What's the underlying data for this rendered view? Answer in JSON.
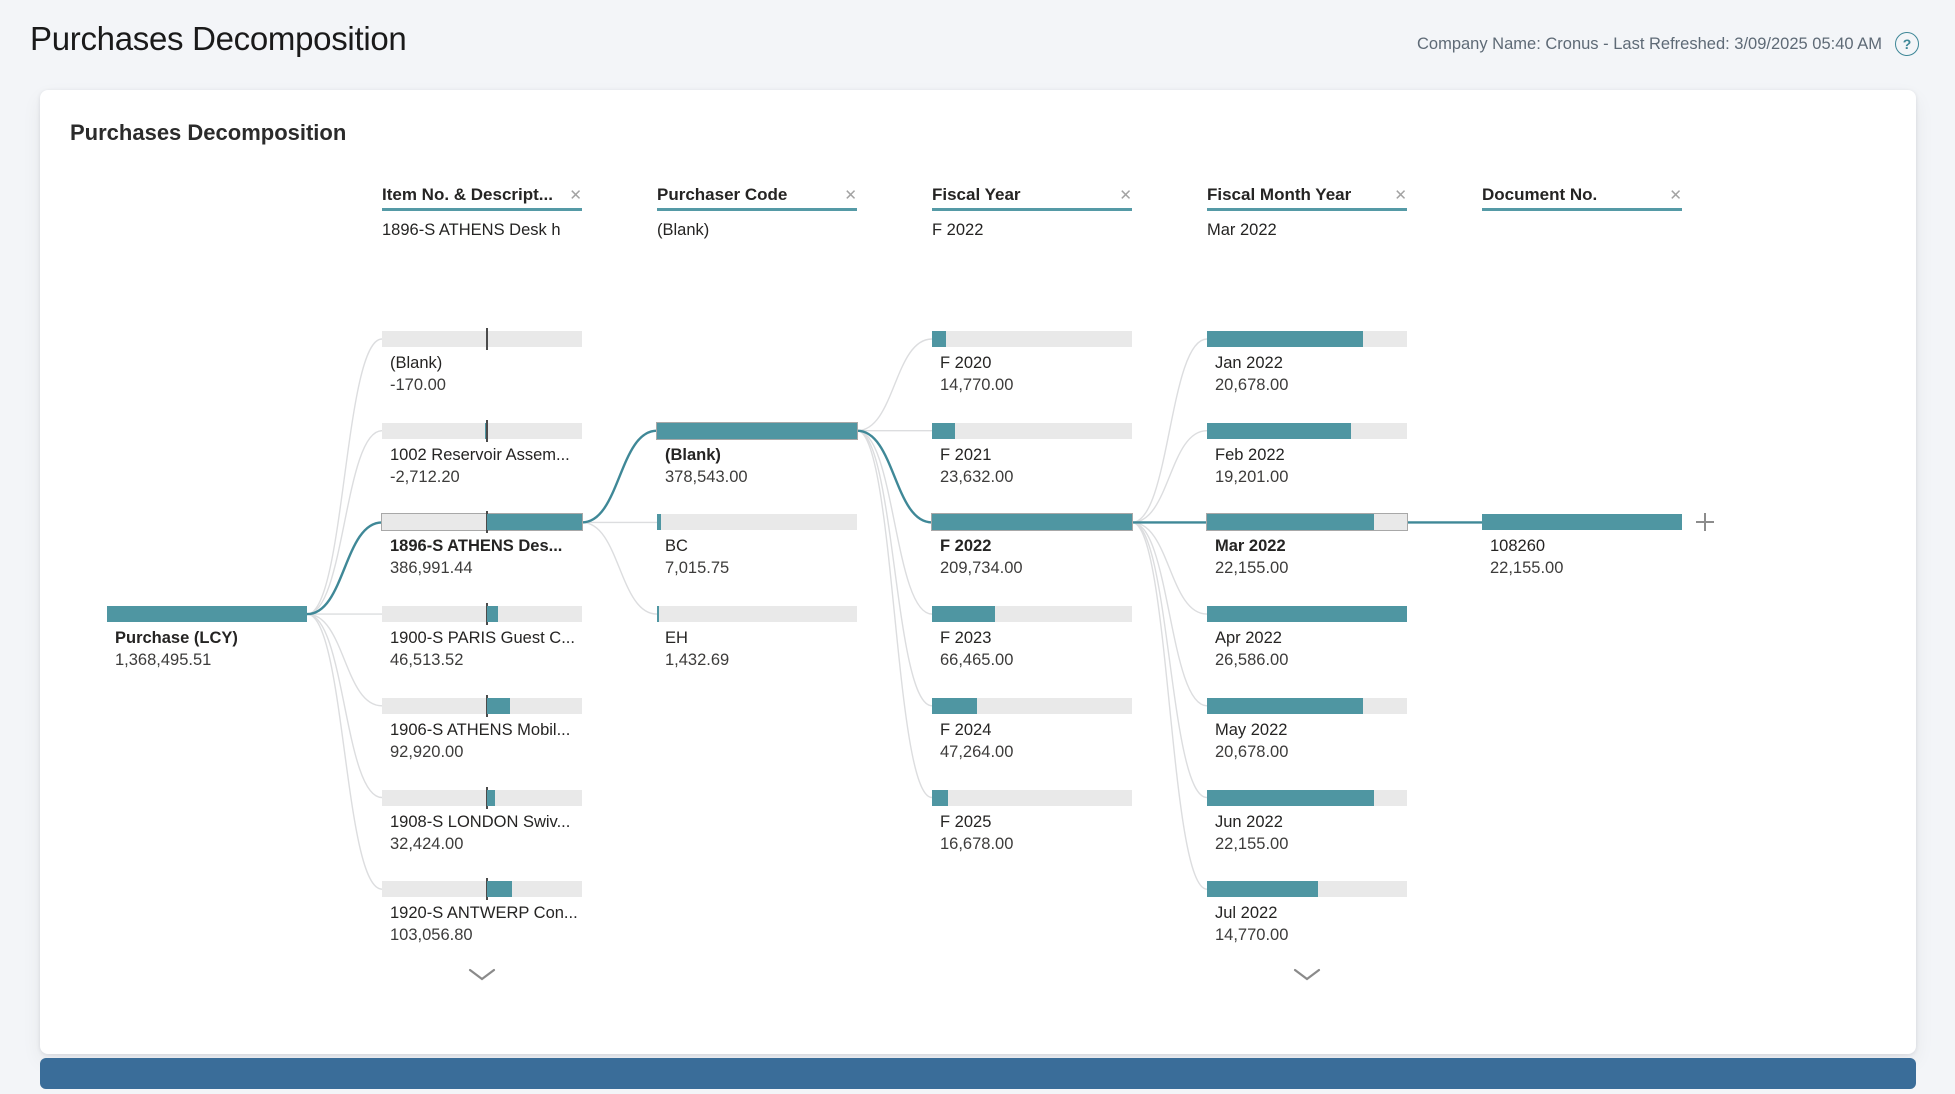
{
  "page": {
    "title": "Purchases Decomposition",
    "meta": "Company Name: Cronus - Last Refreshed: 3/09/2025 05:40 AM",
    "help_glyph": "?"
  },
  "card": {
    "title": "Purchases Decomposition"
  },
  "tree": {
    "accent_color": "#4F96A2",
    "highlight_color": "#3F8897",
    "root": {
      "label": "Purchase (LCY)",
      "value": "1,368,495.51",
      "num": 1368495.51
    },
    "columns": [
      {
        "header": "Item No. & Descript...",
        "close_icon": "✕",
        "selected_value": "1896-S ATHENS Desk h",
        "anchor": "zero",
        "more": true,
        "nodes": [
          {
            "label": "(Blank)",
            "value": "-170.00",
            "num": -170,
            "row": 0
          },
          {
            "label": "1002 Reservoir Assem...",
            "value": "-2,712.20",
            "num": -2712.2,
            "row": 1
          },
          {
            "label": "1896-S ATHENS Des...",
            "value": "386,991.44",
            "num": 386991.44,
            "row": 2,
            "selected": true
          },
          {
            "label": "1900-S PARIS Guest C...",
            "value": "46,513.52",
            "num": 46513.52,
            "row": 3
          },
          {
            "label": "1906-S ATHENS Mobil...",
            "value": "92,920.00",
            "num": 92920,
            "row": 4
          },
          {
            "label": "1908-S LONDON Swiv...",
            "value": "32,424.00",
            "num": 32424,
            "row": 5
          },
          {
            "label": "1920-S ANTWERP Con...",
            "value": "103,056.80",
            "num": 103056.8,
            "row": 6
          }
        ]
      },
      {
        "header": "Purchaser Code",
        "close_icon": "✕",
        "selected_value": "(Blank)",
        "anchor": "left",
        "nodes": [
          {
            "label": "(Blank)",
            "value": "378,543.00",
            "num": 378543,
            "row": 1,
            "selected": true
          },
          {
            "label": "BC",
            "value": "7,015.75",
            "num": 7015.75,
            "row": 2
          },
          {
            "label": "EH",
            "value": "1,432.69",
            "num": 1432.69,
            "row": 3
          }
        ]
      },
      {
        "header": "Fiscal Year",
        "close_icon": "✕",
        "selected_value": "F 2022",
        "anchor": "left",
        "nodes": [
          {
            "label": "F 2020",
            "value": "14,770.00",
            "num": 14770,
            "row": 0
          },
          {
            "label": "F 2021",
            "value": "23,632.00",
            "num": 23632,
            "row": 1
          },
          {
            "label": "F 2022",
            "value": "209,734.00",
            "num": 209734,
            "row": 2,
            "selected": true
          },
          {
            "label": "F 2023",
            "value": "66,465.00",
            "num": 66465,
            "row": 3
          },
          {
            "label": "F 2024",
            "value": "47,264.00",
            "num": 47264,
            "row": 4
          },
          {
            "label": "F 2025",
            "value": "16,678.00",
            "num": 16678,
            "row": 5
          }
        ]
      },
      {
        "header": "Fiscal Month Year",
        "close_icon": "✕",
        "selected_value": "Mar 2022",
        "anchor": "left",
        "more": true,
        "nodes": [
          {
            "label": "Jan 2022",
            "value": "20,678.00",
            "num": 20678,
            "row": 0
          },
          {
            "label": "Feb 2022",
            "value": "19,201.00",
            "num": 19201,
            "row": 1
          },
          {
            "label": "Mar 2022",
            "value": "22,155.00",
            "num": 22155,
            "row": 2,
            "selected": true
          },
          {
            "label": "Apr 2022",
            "value": "26,586.00",
            "num": 26586,
            "row": 3
          },
          {
            "label": "May 2022",
            "value": "20,678.00",
            "num": 20678,
            "row": 4
          },
          {
            "label": "Jun 2022",
            "value": "22,155.00",
            "num": 22155,
            "row": 5
          },
          {
            "label": "Jul 2022",
            "value": "14,770.00",
            "num": 14770,
            "row": 6
          }
        ]
      },
      {
        "header": "Document No.",
        "close_icon": "✕",
        "selected_value": "",
        "anchor": "left",
        "expand_icon": true,
        "nodes": [
          {
            "label": "108260",
            "value": "22,155.00",
            "num": 22155,
            "row": 2
          }
        ]
      }
    ]
  }
}
